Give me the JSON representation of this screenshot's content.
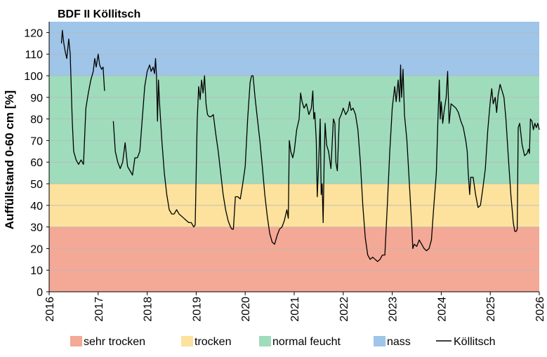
{
  "chart_data": {
    "type": "line",
    "title": "BDF II Köllitsch",
    "xlabel": "",
    "ylabel": "Auffüllstand 0-60 cm [%]",
    "xlim": [
      2016,
      2026
    ],
    "ylim": [
      0,
      125
    ],
    "x_ticks": [
      "2016",
      "2017",
      "2018",
      "2019",
      "2020",
      "2021",
      "2022",
      "2023",
      "2024",
      "2025",
      "2026"
    ],
    "y_ticks": [
      "0",
      "10",
      "20",
      "30",
      "40",
      "50",
      "60",
      "70",
      "80",
      "90",
      "100",
      "110",
      "120"
    ],
    "bands": [
      {
        "name": "sehr trocken",
        "from": 0,
        "to": 30,
        "color": "#f4a896"
      },
      {
        "name": "trocken",
        "from": 30,
        "to": 50,
        "color": "#fce29c"
      },
      {
        "name": "normal feucht",
        "from": 50,
        "to": 100,
        "color": "#9edcbc"
      },
      {
        "name": "nass",
        "from": 100,
        "to": 125,
        "color": "#9fc5e8"
      }
    ],
    "legend": [
      "sehr trocken",
      "trocken",
      "normal feucht",
      "nass",
      "Köllitsch"
    ],
    "legend_position": "bottom",
    "series": [
      {
        "name": "Köllitsch",
        "color": "#000000",
        "segments": [
          [
            [
              2016.25,
              115
            ],
            [
              2016.27,
              121
            ],
            [
              2016.3,
              115
            ],
            [
              2016.33,
              111
            ],
            [
              2016.36,
              108
            ],
            [
              2016.4,
              117
            ],
            [
              2016.43,
              110
            ],
            [
              2016.45,
              95
            ],
            [
              2016.47,
              80
            ],
            [
              2016.5,
              65
            ],
            [
              2016.55,
              61
            ],
            [
              2016.6,
              59
            ],
            [
              2016.65,
              61
            ],
            [
              2016.7,
              59
            ],
            [
              2016.75,
              85
            ],
            [
              2016.8,
              92
            ],
            [
              2016.85,
              98
            ],
            [
              2016.9,
              102
            ],
            [
              2016.93,
              108
            ],
            [
              2016.96,
              104
            ],
            [
              2017.0,
              110
            ],
            [
              2017.03,
              105
            ],
            [
              2017.07,
              103
            ],
            [
              2017.1,
              104
            ],
            [
              2017.13,
              93
            ]
          ],
          [
            [
              2017.31,
              79
            ],
            [
              2017.35,
              65
            ],
            [
              2017.4,
              60
            ],
            [
              2017.45,
              57
            ],
            [
              2017.5,
              60
            ],
            [
              2017.55,
              69
            ],
            [
              2017.6,
              58
            ],
            [
              2017.65,
              56
            ],
            [
              2017.7,
              54
            ],
            [
              2017.75,
              62
            ],
            [
              2017.8,
              62
            ],
            [
              2017.85,
              65
            ],
            [
              2017.9,
              80
            ],
            [
              2017.95,
              95
            ],
            [
              2018.0,
              102
            ],
            [
              2018.05,
              105
            ],
            [
              2018.08,
              102
            ],
            [
              2018.12,
              104
            ],
            [
              2018.15,
              101
            ],
            [
              2018.17,
              108
            ],
            [
              2018.19,
              100
            ],
            [
              2018.21,
              79
            ],
            [
              2018.23,
              98
            ],
            [
              2018.25,
              88
            ],
            [
              2018.3,
              70
            ],
            [
              2018.35,
              55
            ],
            [
              2018.4,
              45
            ],
            [
              2018.45,
              38
            ],
            [
              2018.5,
              36
            ],
            [
              2018.55,
              36
            ],
            [
              2018.6,
              38
            ],
            [
              2018.65,
              36
            ],
            [
              2018.7,
              35
            ],
            [
              2018.75,
              34
            ],
            [
              2018.8,
              33
            ],
            [
              2018.85,
              32
            ],
            [
              2018.9,
              32
            ],
            [
              2018.95,
              30
            ],
            [
              2018.98,
              31
            ],
            [
              2019.02,
              79
            ],
            [
              2019.05,
              95
            ],
            [
              2019.08,
              89
            ],
            [
              2019.11,
              98
            ],
            [
              2019.14,
              92
            ],
            [
              2019.17,
              100
            ],
            [
              2019.2,
              87
            ],
            [
              2019.23,
              82
            ],
            [
              2019.27,
              81
            ],
            [
              2019.3,
              81
            ],
            [
              2019.35,
              82
            ],
            [
              2019.4,
              73
            ],
            [
              2019.45,
              65
            ],
            [
              2019.5,
              55
            ],
            [
              2019.55,
              45
            ],
            [
              2019.6,
              38
            ],
            [
              2019.65,
              33
            ],
            [
              2019.7,
              30
            ],
            [
              2019.73,
              29
            ],
            [
              2019.76,
              29
            ],
            [
              2019.8,
              44
            ],
            [
              2019.85,
              44
            ],
            [
              2019.9,
              43
            ],
            [
              2019.95,
              50
            ],
            [
              2020.0,
              58
            ],
            [
              2020.05,
              80
            ],
            [
              2020.1,
              97
            ],
            [
              2020.13,
              100
            ],
            [
              2020.16,
              100
            ],
            [
              2020.2,
              90
            ],
            [
              2020.25,
              80
            ],
            [
              2020.3,
              70
            ],
            [
              2020.35,
              58
            ],
            [
              2020.4,
              45
            ],
            [
              2020.45,
              35
            ],
            [
              2020.5,
              27
            ],
            [
              2020.55,
              23
            ],
            [
              2020.6,
              22
            ],
            [
              2020.65,
              26
            ],
            [
              2020.7,
              29
            ],
            [
              2020.75,
              30
            ],
            [
              2020.8,
              33
            ],
            [
              2020.85,
              38
            ],
            [
              2020.88,
              34
            ],
            [
              2020.9,
              70
            ],
            [
              2020.93,
              65
            ],
            [
              2020.97,
              62
            ],
            [
              2021.0,
              65
            ],
            [
              2021.05,
              75
            ],
            [
              2021.1,
              80
            ],
            [
              2021.13,
              92
            ],
            [
              2021.16,
              88
            ],
            [
              2021.2,
              85
            ],
            [
              2021.25,
              87
            ],
            [
              2021.3,
              82
            ],
            [
              2021.35,
              85
            ],
            [
              2021.38,
              93
            ],
            [
              2021.4,
              80
            ],
            [
              2021.42,
              83
            ],
            [
              2021.45,
              70
            ],
            [
              2021.47,
              44
            ],
            [
              2021.5,
              60
            ],
            [
              2021.53,
              80
            ],
            [
              2021.55,
              45
            ],
            [
              2021.57,
              50
            ],
            [
              2021.59,
              32
            ],
            [
              2021.61,
              60
            ],
            [
              2021.63,
              78
            ],
            [
              2021.66,
              68
            ],
            [
              2021.7,
              65
            ],
            [
              2021.75,
              57
            ],
            [
              2021.8,
              80
            ],
            [
              2021.83,
              78
            ],
            [
              2021.85,
              60
            ],
            [
              2021.88,
              56
            ],
            [
              2021.92,
              80
            ],
            [
              2021.96,
              82
            ],
            [
              2022.0,
              85
            ],
            [
              2022.05,
              82
            ],
            [
              2022.1,
              84
            ],
            [
              2022.13,
              88
            ],
            [
              2022.16,
              84
            ],
            [
              2022.2,
              85
            ],
            [
              2022.25,
              82
            ],
            [
              2022.3,
              75
            ],
            [
              2022.35,
              60
            ],
            [
              2022.4,
              40
            ],
            [
              2022.45,
              25
            ],
            [
              2022.5,
              17
            ],
            [
              2022.55,
              15
            ],
            [
              2022.6,
              16
            ],
            [
              2022.65,
              15
            ],
            [
              2022.7,
              14
            ],
            [
              2022.75,
              15
            ],
            [
              2022.8,
              17
            ],
            [
              2022.85,
              17
            ],
            [
              2022.9,
              40
            ],
            [
              2022.95,
              65
            ],
            [
              2023.0,
              85
            ],
            [
              2023.05,
              95
            ],
            [
              2023.08,
              88
            ],
            [
              2023.12,
              98
            ],
            [
              2023.15,
              88
            ],
            [
              2023.17,
              105
            ],
            [
              2023.19,
              90
            ],
            [
              2023.22,
              103
            ],
            [
              2023.25,
              82
            ],
            [
              2023.3,
              70
            ],
            [
              2023.35,
              50
            ],
            [
              2023.4,
              30
            ],
            [
              2023.42,
              20
            ],
            [
              2023.45,
              22
            ],
            [
              2023.5,
              21
            ],
            [
              2023.55,
              24
            ],
            [
              2023.6,
              22
            ],
            [
              2023.65,
              20
            ],
            [
              2023.7,
              19
            ],
            [
              2023.75,
              20
            ],
            [
              2023.8,
              24
            ],
            [
              2023.85,
              40
            ],
            [
              2023.9,
              55
            ],
            [
              2023.93,
              78
            ],
            [
              2023.96,
              98
            ],
            [
              2023.98,
              80
            ],
            [
              2024.0,
              88
            ],
            [
              2024.03,
              78
            ],
            [
              2024.06,
              84
            ],
            [
              2024.1,
              90
            ],
            [
              2024.13,
              102
            ],
            [
              2024.16,
              78
            ],
            [
              2024.2,
              87
            ],
            [
              2024.25,
              86
            ],
            [
              2024.3,
              85
            ],
            [
              2024.35,
              83
            ],
            [
              2024.4,
              79
            ],
            [
              2024.45,
              76
            ],
            [
              2024.5,
              70
            ],
            [
              2024.53,
              65
            ],
            [
              2024.55,
              55
            ],
            [
              2024.58,
              45
            ],
            [
              2024.6,
              53
            ],
            [
              2024.65,
              53
            ],
            [
              2024.7,
              45
            ],
            [
              2024.75,
              39
            ],
            [
              2024.8,
              40
            ],
            [
              2024.85,
              48
            ],
            [
              2024.9,
              57
            ],
            [
              2024.95,
              75
            ],
            [
              2025.0,
              88
            ],
            [
              2025.03,
              94
            ],
            [
              2025.06,
              87
            ],
            [
              2025.1,
              90
            ],
            [
              2025.13,
              83
            ],
            [
              2025.16,
              91
            ],
            [
              2025.2,
              96
            ],
            [
              2025.24,
              93
            ],
            [
              2025.28,
              90
            ],
            [
              2025.32,
              80
            ],
            [
              2025.37,
              62
            ],
            [
              2025.42,
              45
            ],
            [
              2025.47,
              32
            ],
            [
              2025.5,
              28
            ],
            [
              2025.53,
              28
            ],
            [
              2025.55,
              29
            ],
            [
              2025.57,
              76
            ],
            [
              2025.6,
              78
            ],
            [
              2025.65,
              68
            ],
            [
              2025.7,
              63
            ],
            [
              2025.75,
              64
            ],
            [
              2025.78,
              66
            ],
            [
              2025.8,
              64
            ],
            [
              2025.82,
              80
            ],
            [
              2025.85,
              79
            ],
            [
              2025.88,
              75
            ],
            [
              2025.91,
              78
            ],
            [
              2025.94,
              76
            ],
            [
              2025.97,
              78
            ],
            [
              2026.0,
              75
            ]
          ]
        ]
      }
    ]
  }
}
